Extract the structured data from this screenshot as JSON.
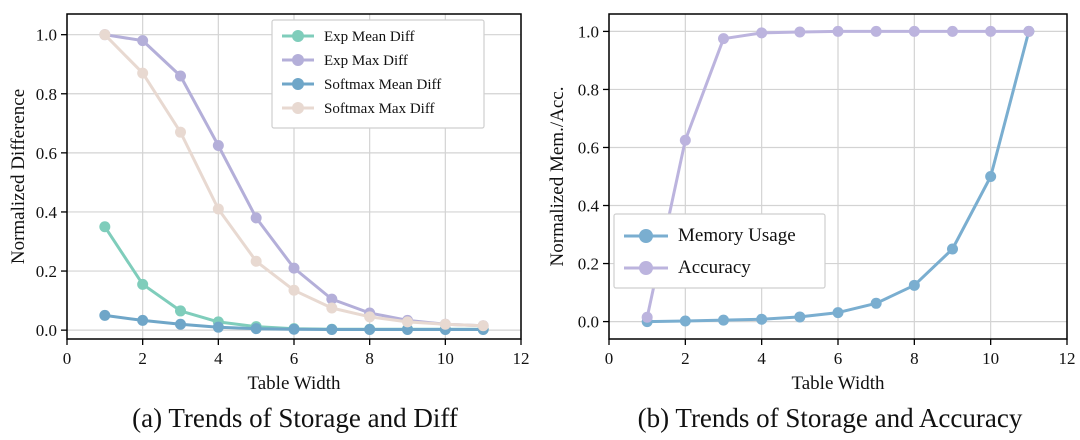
{
  "chart_data": [
    {
      "type": "line",
      "caption": "(a) Trends of Storage and Diff",
      "xlabel": "Table Width",
      "ylabel": "Normalized Difference",
      "xlim": [
        0,
        12
      ],
      "ylim": [
        -0.03,
        1.07
      ],
      "xticks": [
        0,
        2,
        4,
        6,
        8,
        10,
        12
      ],
      "yticks": [
        0.0,
        0.2,
        0.4,
        0.6,
        0.8,
        1.0
      ],
      "grid": true,
      "legend_position": "top-right",
      "x": [
        1,
        2,
        3,
        4,
        5,
        6,
        7,
        8,
        9,
        10,
        11
      ],
      "series": [
        {
          "name": "Exp Mean Diff",
          "color": "#7fcdbb",
          "values": [
            0.35,
            0.155,
            0.065,
            0.028,
            0.012,
            0.005,
            0.003,
            0.003,
            0.003,
            0.003,
            0.003
          ]
        },
        {
          "name": "Exp Max Diff",
          "color": "#b4afd9",
          "values": [
            1.0,
            0.98,
            0.86,
            0.625,
            0.38,
            0.21,
            0.105,
            0.058,
            0.033,
            0.02,
            0.015
          ]
        },
        {
          "name": "Softmax Mean Diff",
          "color": "#6fa6c8",
          "values": [
            0.05,
            0.033,
            0.02,
            0.01,
            0.005,
            0.003,
            0.002,
            0.002,
            0.002,
            0.002,
            0.002
          ]
        },
        {
          "name": "Softmax Max Diff",
          "color": "#e8d9d1",
          "values": [
            1.0,
            0.87,
            0.67,
            0.41,
            0.233,
            0.135,
            0.075,
            0.045,
            0.028,
            0.02,
            0.015
          ]
        }
      ]
    },
    {
      "type": "line",
      "caption": "(b) Trends of Storage and Accuracy",
      "xlabel": "Table Width",
      "ylabel": "Normalized Mem./Acc.",
      "xlim": [
        0,
        12
      ],
      "ylim": [
        -0.06,
        1.06
      ],
      "xticks": [
        0,
        2,
        4,
        6,
        8,
        10,
        12
      ],
      "yticks": [
        0.0,
        0.2,
        0.4,
        0.6,
        0.8,
        1.0
      ],
      "grid": true,
      "legend_position": "center-left",
      "x": [
        1,
        2,
        3,
        4,
        5,
        6,
        7,
        8,
        9,
        10,
        11
      ],
      "series": [
        {
          "name": "Memory Usage",
          "color": "#7aaed0",
          "values": [
            0.0,
            0.002,
            0.005,
            0.008,
            0.016,
            0.031,
            0.063,
            0.125,
            0.25,
            0.5,
            1.0
          ]
        },
        {
          "name": "Accuracy",
          "color": "#bcb4de",
          "values": [
            0.015,
            0.625,
            0.975,
            0.995,
            0.998,
            1.0,
            1.0,
            1.0,
            1.0,
            1.0,
            1.0
          ]
        }
      ]
    }
  ]
}
